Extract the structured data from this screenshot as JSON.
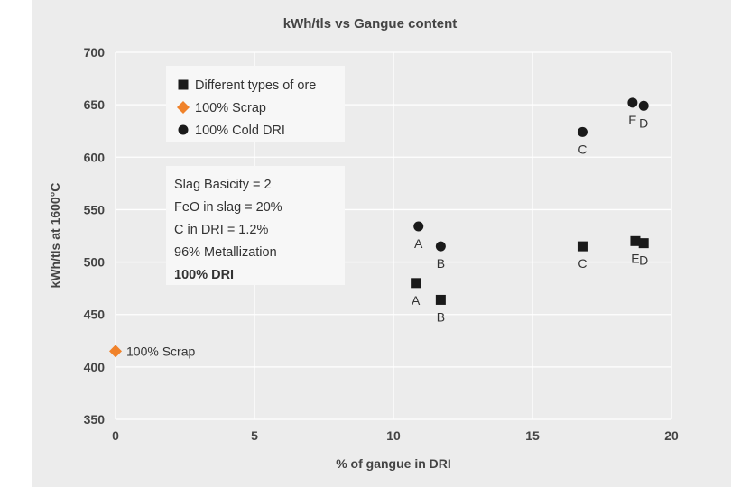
{
  "chart_data": {
    "type": "scatter",
    "title": "kWh/tls vs Gangue content",
    "xlabel": "% of gangue in DRI",
    "ylabel": "kWh/tls at 1600°C",
    "xlim": [
      0,
      20
    ],
    "ylim": [
      350,
      700
    ],
    "x_ticks": [
      "0",
      "5",
      "10",
      "15",
      "20"
    ],
    "y_ticks": [
      "350",
      "400",
      "450",
      "500",
      "550",
      "600",
      "650",
      "700"
    ],
    "grid": true,
    "legend_position": "top-left",
    "series": [
      {
        "name": "Different types of ore",
        "marker": "square",
        "color": "#1a1a1a",
        "points": [
          {
            "label": "A",
            "x": 10.8,
            "y": 480
          },
          {
            "label": "B",
            "x": 11.7,
            "y": 464
          },
          {
            "label": "C",
            "x": 16.8,
            "y": 515
          },
          {
            "label": "E",
            "x": 18.7,
            "y": 520
          },
          {
            "label": "D",
            "x": 19.0,
            "y": 518
          }
        ]
      },
      {
        "name": "100% Scrap",
        "marker": "diamond",
        "color": "#f0822a",
        "points": [
          {
            "label": "100% Scrap",
            "x": 0,
            "y": 415
          }
        ]
      },
      {
        "name": "100% Cold DRI",
        "marker": "circle",
        "color": "#1a1a1a",
        "points": [
          {
            "label": "A",
            "x": 10.9,
            "y": 534
          },
          {
            "label": "B",
            "x": 11.7,
            "y": 515
          },
          {
            "label": "C",
            "x": 16.8,
            "y": 624
          },
          {
            "label": "E",
            "x": 18.6,
            "y": 652
          },
          {
            "label": "D",
            "x": 19.0,
            "y": 649
          }
        ]
      }
    ],
    "annotation": {
      "lines": [
        "Slag Basicity = 2",
        "FeO in slag = 20%",
        "C in DRI = 1.2%",
        "96% Metallization",
        "100% DRI"
      ],
      "bold_last": true
    }
  }
}
